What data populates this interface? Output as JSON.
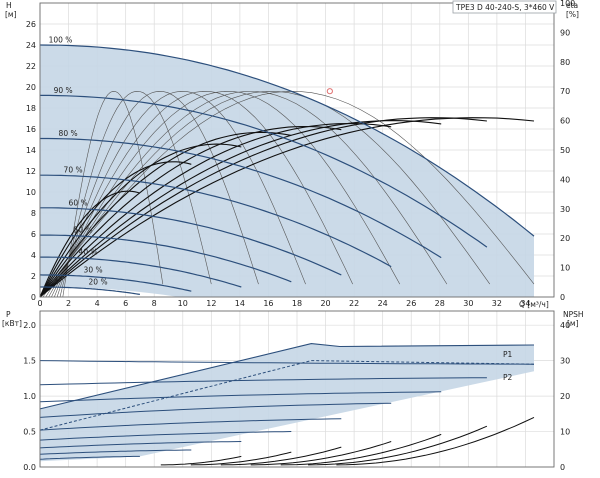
{
  "chart_data": [
    {
      "type": "line",
      "title": "TPE3 D 40-240-S, 3*460 V",
      "xlabel": "Q [м³/ч]",
      "ylabel": "H [м]",
      "y2label": "eta [%]",
      "xlim": [
        0,
        36
      ],
      "ylim": [
        0,
        28
      ],
      "y2lim": [
        0,
        100
      ],
      "xticks": [
        0,
        2,
        4,
        6,
        8,
        10,
        12,
        14,
        16,
        18,
        20,
        22,
        24,
        26,
        28,
        30,
        32,
        34
      ],
      "yticks": [
        0,
        2,
        4,
        6,
        8,
        10,
        12,
        14,
        16,
        18,
        20,
        22,
        24,
        26
      ],
      "y2ticks": [
        0,
        10,
        20,
        30,
        40,
        50,
        60,
        70,
        80,
        90,
        100
      ],
      "grid": true,
      "operating_area_color": "#c5d6e6",
      "curve_color": "#2c4f7c",
      "duty_point": {
        "x": 20.3,
        "y": 19.6,
        "color": "#e07070"
      },
      "speed_curves": [
        {
          "name": "100 %",
          "h0": 24.0,
          "qmax": 34.6,
          "hend": 5.8
        },
        {
          "name": "90 %",
          "h0": 19.2,
          "qmax": 31.3,
          "hend": 4.75
        },
        {
          "name": "80 %",
          "h0": 15.1,
          "qmax": 28.1,
          "hend": 3.75
        },
        {
          "name": "70 %",
          "h0": 11.6,
          "qmax": 24.6,
          "hend": 2.9
        },
        {
          "name": "60 %",
          "h0": 8.5,
          "qmax": 21.1,
          "hend": 2.1
        },
        {
          "name": "50 %",
          "h0": 5.9,
          "qmax": 17.6,
          "hend": 1.45
        },
        {
          "name": "40 %",
          "h0": 3.8,
          "qmax": 14.1,
          "hend": 0.95
        },
        {
          "name": "30 %",
          "h0": 2.1,
          "qmax": 10.6,
          "hend": 0.55
        },
        {
          "name": "20 %",
          "h0": 0.95,
          "qmax": 7.0,
          "hend": 0.25
        }
      ],
      "eta_curves": [
        {
          "qmax": 34.6,
          "peak": 61
        },
        {
          "qmax": 31.3,
          "peak": 61
        },
        {
          "qmax": 28.1,
          "peak": 60
        },
        {
          "qmax": 24.6,
          "peak": 59
        },
        {
          "qmax": 21.1,
          "peak": 58
        },
        {
          "qmax": 17.6,
          "peak": 56
        },
        {
          "qmax": 14.1,
          "peak": 52
        },
        {
          "qmax": 10.6,
          "peak": 46
        },
        {
          "qmax": 7.0,
          "peak": 36
        }
      ],
      "eta_thin_curves": [
        {
          "qmax": 34.6,
          "peak": 70
        },
        {
          "qmax": 31.3,
          "peak": 70
        },
        {
          "qmax": 28.1,
          "peak": 70
        },
        {
          "qmax": 24.6,
          "peak": 70
        },
        {
          "qmax": 21.1,
          "peak": 70
        },
        {
          "qmax": 17.6,
          "peak": 70
        },
        {
          "qmax": 14.1,
          "peak": 70
        },
        {
          "qmax": 10.6,
          "peak": 70
        },
        {
          "qmax": 7.0,
          "peak": 70
        }
      ]
    },
    {
      "type": "line",
      "ylabel": "P [кВт]",
      "y2label": "NPSH [м]",
      "xlim": [
        0,
        36
      ],
      "ylim": [
        0,
        2.2
      ],
      "y2lim": [
        0,
        44
      ],
      "yticks": [
        0,
        0.5,
        1.0,
        1.5,
        2.0
      ],
      "ytick_labels": [
        "0.0",
        "0.5",
        "1.0",
        "1.5",
        "2.0"
      ],
      "y2ticks": [
        0,
        10,
        20,
        30,
        40
      ],
      "grid": true,
      "series_labels": [
        "P1",
        "P2"
      ],
      "p1_limit": [
        [
          0,
          0.82
        ],
        [
          19,
          1.74
        ],
        [
          21,
          1.7
        ],
        [
          34.6,
          1.72
        ]
      ],
      "p2_limit": [
        [
          0,
          0.52
        ],
        [
          19,
          1.5
        ],
        [
          34.6,
          1.45
        ]
      ],
      "power_curves": [
        {
          "qmax": 34.6,
          "p0": 1.5,
          "pend": 1.45
        },
        {
          "qmax": 31.3,
          "p0": 1.16,
          "pend": 1.26
        },
        {
          "qmax": 28.1,
          "p0": 0.92,
          "pend": 1.06
        },
        {
          "qmax": 24.6,
          "p0": 0.7,
          "pend": 0.9
        },
        {
          "qmax": 21.1,
          "p0": 0.52,
          "pend": 0.68
        },
        {
          "qmax": 17.6,
          "p0": 0.38,
          "pend": 0.5
        },
        {
          "qmax": 14.1,
          "p0": 0.27,
          "pend": 0.36
        },
        {
          "qmax": 10.6,
          "p0": 0.18,
          "pend": 0.24
        },
        {
          "qmax": 7.0,
          "p0": 0.11,
          "pend": 0.15
        }
      ],
      "npsh_curves": [
        {
          "qmax": 34.6,
          "nend": 14
        },
        {
          "qmax": 31.3,
          "nend": 11.5
        },
        {
          "qmax": 28.1,
          "nend": 9.2
        },
        {
          "qmax": 24.6,
          "nend": 7.2
        },
        {
          "qmax": 21.1,
          "nend": 5.6
        },
        {
          "qmax": 17.6,
          "nend": 4.2
        },
        {
          "qmax": 14.1,
          "nend": 3.0
        }
      ]
    }
  ]
}
